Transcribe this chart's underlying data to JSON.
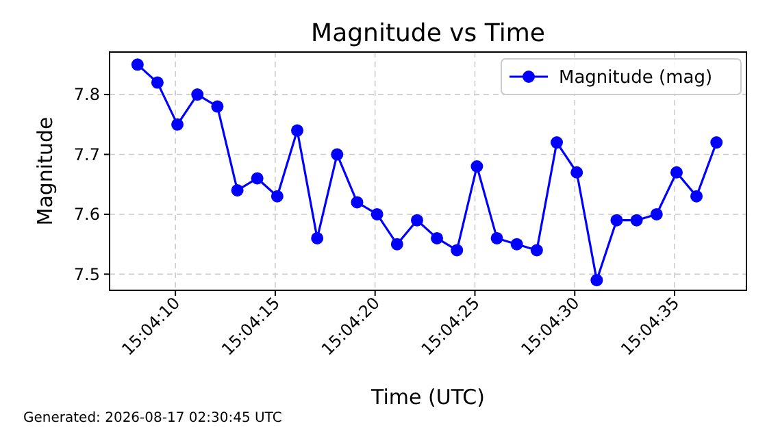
{
  "chart_data": {
    "type": "line",
    "title": "Magnitude vs Time",
    "xlabel": "Time (UTC)",
    "ylabel": "Magnitude",
    "x": [
      15.068917,
      15.069194,
      15.069472,
      15.06975,
      15.070028,
      15.070306,
      15.070583,
      15.070861,
      15.071139,
      15.071417,
      15.071694,
      15.071972,
      15.07225,
      15.072528,
      15.072806,
      15.073083,
      15.073361,
      15.073639,
      15.073917,
      15.074194,
      15.074472,
      15.07475,
      15.075028,
      15.075306,
      15.075583,
      15.075861,
      15.076139,
      15.076417,
      15.076694,
      15.076972
    ],
    "series": [
      {
        "name": "Magnitude (mag)",
        "color": "#0000ff",
        "values": [
          7.85,
          7.82,
          7.75,
          7.8,
          7.78,
          7.64,
          7.66,
          7.63,
          7.74,
          7.56,
          7.7,
          7.62,
          7.6,
          7.55,
          7.59,
          7.56,
          7.54,
          7.68,
          7.56,
          7.55,
          7.54,
          7.72,
          7.67,
          7.49,
          7.59,
          7.59,
          7.6,
          7.67,
          7.63,
          7.72
        ]
      }
    ],
    "xlim": [
      15.068528,
      15.077389
    ],
    "xticks": [
      {
        "value": 15.069444,
        "label": "15:04:10"
      },
      {
        "value": 15.070833,
        "label": "15:04:15"
      },
      {
        "value": 15.072222,
        "label": "15:04:20"
      },
      {
        "value": 15.073611,
        "label": "15:04:25"
      },
      {
        "value": 15.075,
        "label": "15:04:30"
      },
      {
        "value": 15.076389,
        "label": "15:04:35"
      }
    ],
    "ylim": [
      7.473,
      7.871
    ],
    "yticks": [
      7.5,
      7.6,
      7.7,
      7.8
    ],
    "grid": true,
    "legend": "top right",
    "marker": "circle",
    "line_style": "solid",
    "annotations": [
      "Generated: 2026-08-17 02:30:45 UTC"
    ]
  }
}
